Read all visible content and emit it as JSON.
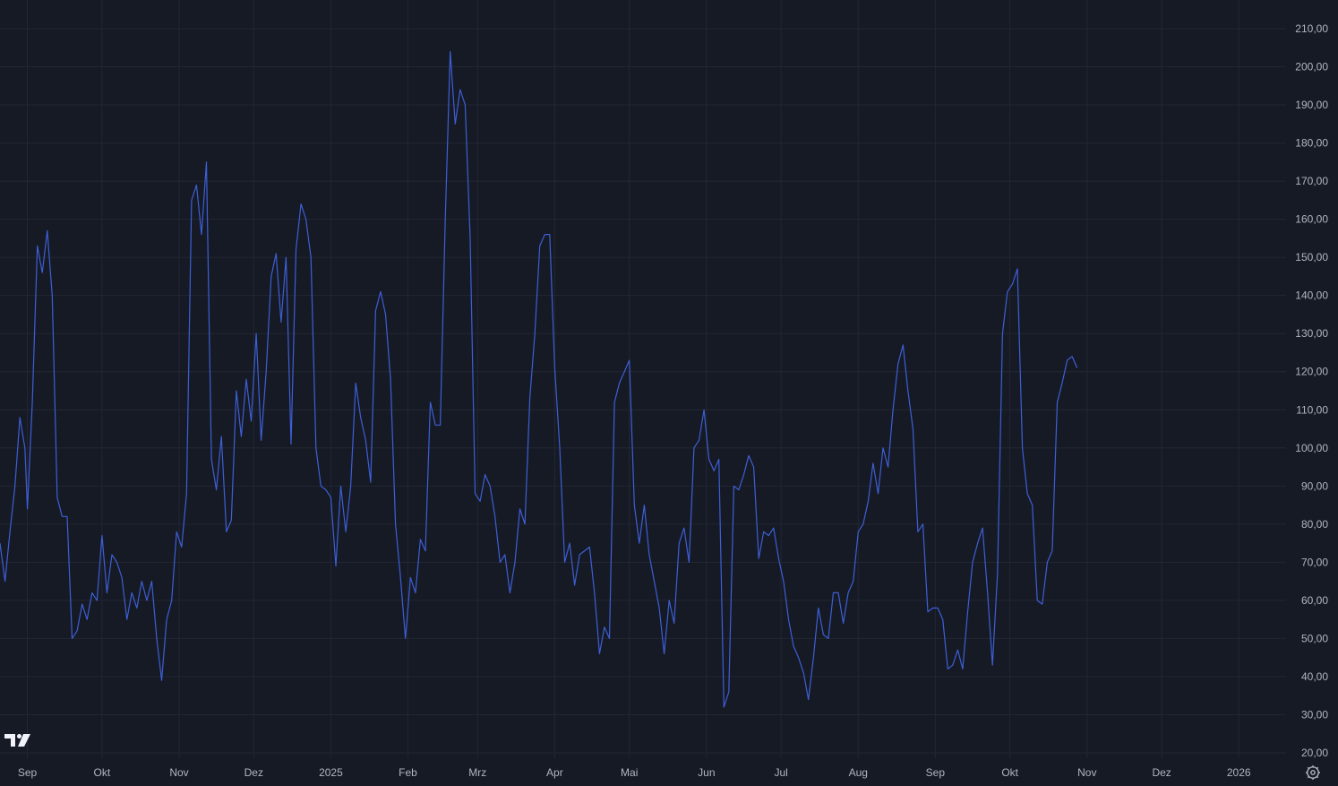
{
  "colors": {
    "background": "#161a25",
    "line": "#3d5fd6",
    "grid": "#232733",
    "text": "#b2b5be"
  },
  "icons": {
    "logo": "tradingview-logo-icon",
    "settings": "settings-gear-icon"
  },
  "chart_data": {
    "type": "line",
    "title": "",
    "xlabel": "",
    "ylabel": "",
    "ylim": [
      20,
      210
    ],
    "xlim": [
      "2024-08-21",
      "2026-01-20"
    ],
    "grid": true,
    "y_axis_position": "right",
    "y_ticks": [
      "210,00",
      "200,00",
      "190,00",
      "180,00",
      "170,00",
      "160,00",
      "150,00",
      "140,00",
      "130,00",
      "120,00",
      "110,00",
      "100,00",
      "90,00",
      "80,00",
      "70,00",
      "60,00",
      "50,00",
      "40,00",
      "30,00",
      "20,00"
    ],
    "x_ticks": [
      {
        "label": "Sep",
        "date": "2024-09-01"
      },
      {
        "label": "Okt",
        "date": "2024-10-01"
      },
      {
        "label": "Nov",
        "date": "2024-11-01"
      },
      {
        "label": "Dez",
        "date": "2024-12-01"
      },
      {
        "label": "2025",
        "date": "2025-01-01"
      },
      {
        "label": "Feb",
        "date": "2025-02-01"
      },
      {
        "label": "Mrz",
        "date": "2025-03-01"
      },
      {
        "label": "Apr",
        "date": "2025-04-01"
      },
      {
        "label": "Mai",
        "date": "2025-05-01"
      },
      {
        "label": "Jun",
        "date": "2025-06-01"
      },
      {
        "label": "Jul",
        "date": "2025-07-01"
      },
      {
        "label": "Aug",
        "date": "2025-08-01"
      },
      {
        "label": "Sep",
        "date": "2025-09-01"
      },
      {
        "label": "Okt",
        "date": "2025-10-01"
      },
      {
        "label": "Nov",
        "date": "2025-11-01"
      },
      {
        "label": "Dez",
        "date": "2025-12-01"
      },
      {
        "label": "2026",
        "date": "2026-01-01"
      }
    ],
    "series": [
      {
        "points": [
          [
            "2024-08-21",
            75
          ],
          [
            "2024-08-23",
            65
          ],
          [
            "2024-08-25",
            78
          ],
          [
            "2024-08-27",
            90
          ],
          [
            "2024-08-29",
            108
          ],
          [
            "2024-08-31",
            100
          ],
          [
            "2024-09-01",
            84
          ],
          [
            "2024-09-03",
            112
          ],
          [
            "2024-09-05",
            153
          ],
          [
            "2024-09-07",
            146
          ],
          [
            "2024-09-09",
            157
          ],
          [
            "2024-09-11",
            140
          ],
          [
            "2024-09-13",
            87
          ],
          [
            "2024-09-15",
            82
          ],
          [
            "2024-09-17",
            82
          ],
          [
            "2024-09-19",
            50
          ],
          [
            "2024-09-21",
            52
          ],
          [
            "2024-09-23",
            59
          ],
          [
            "2024-09-25",
            55
          ],
          [
            "2024-09-27",
            62
          ],
          [
            "2024-09-29",
            60
          ],
          [
            "2024-10-01",
            77
          ],
          [
            "2024-10-03",
            62
          ],
          [
            "2024-10-05",
            72
          ],
          [
            "2024-10-07",
            70
          ],
          [
            "2024-10-09",
            66
          ],
          [
            "2024-10-11",
            55
          ],
          [
            "2024-10-13",
            62
          ],
          [
            "2024-10-15",
            58
          ],
          [
            "2024-10-17",
            65
          ],
          [
            "2024-10-19",
            60
          ],
          [
            "2024-10-21",
            65
          ],
          [
            "2024-10-23",
            50
          ],
          [
            "2024-10-25",
            39
          ],
          [
            "2024-10-27",
            55
          ],
          [
            "2024-10-29",
            60
          ],
          [
            "2024-10-31",
            78
          ],
          [
            "2024-11-02",
            74
          ],
          [
            "2024-11-04",
            88
          ],
          [
            "2024-11-06",
            165
          ],
          [
            "2024-11-08",
            169
          ],
          [
            "2024-11-10",
            156
          ],
          [
            "2024-11-12",
            175
          ],
          [
            "2024-11-14",
            97
          ],
          [
            "2024-11-16",
            89
          ],
          [
            "2024-11-18",
            103
          ],
          [
            "2024-11-20",
            78
          ],
          [
            "2024-11-22",
            81
          ],
          [
            "2024-11-24",
            115
          ],
          [
            "2024-11-26",
            103
          ],
          [
            "2024-11-28",
            118
          ],
          [
            "2024-11-30",
            107
          ],
          [
            "2024-12-02",
            130
          ],
          [
            "2024-12-04",
            102
          ],
          [
            "2024-12-06",
            120
          ],
          [
            "2024-12-08",
            145
          ],
          [
            "2024-12-10",
            151
          ],
          [
            "2024-12-12",
            133
          ],
          [
            "2024-12-14",
            150
          ],
          [
            "2024-12-16",
            101
          ],
          [
            "2024-12-18",
            152
          ],
          [
            "2024-12-20",
            164
          ],
          [
            "2024-12-22",
            160
          ],
          [
            "2024-12-24",
            150
          ],
          [
            "2024-12-26",
            100
          ],
          [
            "2024-12-28",
            90
          ],
          [
            "2024-12-30",
            89
          ],
          [
            "2025-01-01",
            87
          ],
          [
            "2025-01-03",
            69
          ],
          [
            "2025-01-05",
            90
          ],
          [
            "2025-01-07",
            78
          ],
          [
            "2025-01-09",
            90
          ],
          [
            "2025-01-11",
            117
          ],
          [
            "2025-01-13",
            108
          ],
          [
            "2025-01-15",
            102
          ],
          [
            "2025-01-17",
            91
          ],
          [
            "2025-01-19",
            136
          ],
          [
            "2025-01-21",
            141
          ],
          [
            "2025-01-23",
            135
          ],
          [
            "2025-01-25",
            118
          ],
          [
            "2025-01-27",
            80
          ],
          [
            "2025-01-29",
            66
          ],
          [
            "2025-01-31",
            50
          ],
          [
            "2025-02-02",
            66
          ],
          [
            "2025-02-04",
            62
          ],
          [
            "2025-02-06",
            76
          ],
          [
            "2025-02-08",
            73
          ],
          [
            "2025-02-10",
            112
          ],
          [
            "2025-02-12",
            106
          ],
          [
            "2025-02-14",
            106
          ],
          [
            "2025-02-16",
            160
          ],
          [
            "2025-02-18",
            204
          ],
          [
            "2025-02-20",
            185
          ],
          [
            "2025-02-22",
            194
          ],
          [
            "2025-02-24",
            190
          ],
          [
            "2025-02-26",
            155
          ],
          [
            "2025-02-28",
            88
          ],
          [
            "2025-03-02",
            86
          ],
          [
            "2025-03-04",
            93
          ],
          [
            "2025-03-06",
            90
          ],
          [
            "2025-03-08",
            82
          ],
          [
            "2025-03-10",
            70
          ],
          [
            "2025-03-12",
            72
          ],
          [
            "2025-03-14",
            62
          ],
          [
            "2025-03-16",
            70
          ],
          [
            "2025-03-18",
            84
          ],
          [
            "2025-03-20",
            80
          ],
          [
            "2025-03-22",
            113
          ],
          [
            "2025-03-24",
            130
          ],
          [
            "2025-03-26",
            153
          ],
          [
            "2025-03-28",
            156
          ],
          [
            "2025-03-30",
            156
          ],
          [
            "2025-04-01",
            121
          ],
          [
            "2025-04-03",
            100
          ],
          [
            "2025-04-05",
            70
          ],
          [
            "2025-04-07",
            75
          ],
          [
            "2025-04-09",
            64
          ],
          [
            "2025-04-11",
            72
          ],
          [
            "2025-04-13",
            73
          ],
          [
            "2025-04-15",
            74
          ],
          [
            "2025-04-17",
            62
          ],
          [
            "2025-04-19",
            46
          ],
          [
            "2025-04-21",
            53
          ],
          [
            "2025-04-23",
            50
          ],
          [
            "2025-04-25",
            112
          ],
          [
            "2025-04-27",
            117
          ],
          [
            "2025-04-29",
            120
          ],
          [
            "2025-05-01",
            123
          ],
          [
            "2025-05-03",
            85
          ],
          [
            "2025-05-05",
            75
          ],
          [
            "2025-05-07",
            85
          ],
          [
            "2025-05-09",
            72
          ],
          [
            "2025-05-11",
            65
          ],
          [
            "2025-05-13",
            58
          ],
          [
            "2025-05-15",
            46
          ],
          [
            "2025-05-17",
            60
          ],
          [
            "2025-05-19",
            54
          ],
          [
            "2025-05-21",
            75
          ],
          [
            "2025-05-23",
            79
          ],
          [
            "2025-05-25",
            70
          ],
          [
            "2025-05-27",
            100
          ],
          [
            "2025-05-29",
            102
          ],
          [
            "2025-05-31",
            110
          ],
          [
            "2025-06-02",
            97
          ],
          [
            "2025-06-04",
            94
          ],
          [
            "2025-06-06",
            97
          ],
          [
            "2025-06-08",
            32
          ],
          [
            "2025-06-10",
            36
          ],
          [
            "2025-06-12",
            90
          ],
          [
            "2025-06-14",
            89
          ],
          [
            "2025-06-16",
            93
          ],
          [
            "2025-06-18",
            98
          ],
          [
            "2025-06-20",
            95
          ],
          [
            "2025-06-22",
            71
          ],
          [
            "2025-06-24",
            78
          ],
          [
            "2025-06-26",
            77
          ],
          [
            "2025-06-28",
            79
          ],
          [
            "2025-06-30",
            71
          ],
          [
            "2025-07-02",
            65
          ],
          [
            "2025-07-04",
            55
          ],
          [
            "2025-07-06",
            48
          ],
          [
            "2025-07-08",
            45
          ],
          [
            "2025-07-10",
            41
          ],
          [
            "2025-07-12",
            34
          ],
          [
            "2025-07-14",
            45
          ],
          [
            "2025-07-16",
            58
          ],
          [
            "2025-07-18",
            51
          ],
          [
            "2025-07-20",
            50
          ],
          [
            "2025-07-22",
            62
          ],
          [
            "2025-07-24",
            62
          ],
          [
            "2025-07-26",
            54
          ],
          [
            "2025-07-28",
            62
          ],
          [
            "2025-07-30",
            65
          ],
          [
            "2025-08-01",
            78
          ],
          [
            "2025-08-03",
            80
          ],
          [
            "2025-08-05",
            86
          ],
          [
            "2025-08-07",
            96
          ],
          [
            "2025-08-09",
            88
          ],
          [
            "2025-08-11",
            100
          ],
          [
            "2025-08-13",
            95
          ],
          [
            "2025-08-15",
            110
          ],
          [
            "2025-08-17",
            122
          ],
          [
            "2025-08-19",
            127
          ],
          [
            "2025-08-21",
            115
          ],
          [
            "2025-08-23",
            105
          ],
          [
            "2025-08-25",
            78
          ],
          [
            "2025-08-27",
            80
          ],
          [
            "2025-08-29",
            57
          ],
          [
            "2025-08-31",
            58
          ],
          [
            "2025-09-02",
            58
          ],
          [
            "2025-09-04",
            55
          ],
          [
            "2025-09-06",
            42
          ],
          [
            "2025-09-08",
            43
          ],
          [
            "2025-09-10",
            47
          ],
          [
            "2025-09-12",
            42
          ],
          [
            "2025-09-14",
            57
          ],
          [
            "2025-09-16",
            70
          ],
          [
            "2025-09-18",
            75
          ],
          [
            "2025-09-20",
            79
          ],
          [
            "2025-09-22",
            62
          ],
          [
            "2025-09-24",
            43
          ],
          [
            "2025-09-26",
            67
          ],
          [
            "2025-09-28",
            130
          ],
          [
            "2025-09-30",
            141
          ],
          [
            "2025-10-02",
            143
          ],
          [
            "2025-10-04",
            147
          ],
          [
            "2025-10-06",
            100
          ],
          [
            "2025-10-08",
            88
          ],
          [
            "2025-10-10",
            85
          ],
          [
            "2025-10-12",
            60
          ],
          [
            "2025-10-14",
            59
          ],
          [
            "2025-10-16",
            70
          ],
          [
            "2025-10-18",
            73
          ],
          [
            "2025-10-20",
            112
          ],
          [
            "2025-10-22",
            117
          ],
          [
            "2025-10-24",
            123
          ],
          [
            "2025-10-26",
            124
          ],
          [
            "2025-10-28",
            121
          ]
        ]
      }
    ]
  }
}
